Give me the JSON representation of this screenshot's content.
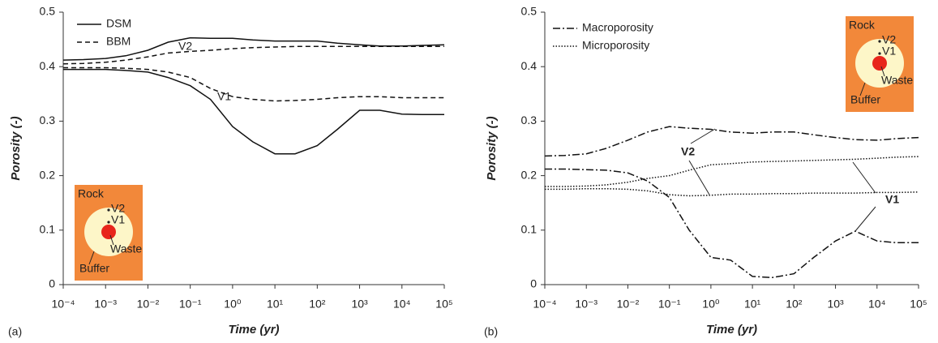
{
  "chart_data": [
    {
      "type": "line",
      "panel_label": "(a)",
      "xscale": "log",
      "x_label": "Time (yr)",
      "y_label": "Porosity (-)",
      "xlim": [
        0.0001,
        100000
      ],
      "xticks": [
        {
          "value": 0.0001,
          "label": "10⁻⁴"
        },
        {
          "value": 0.001,
          "label": "10⁻³"
        },
        {
          "value": 0.01,
          "label": "10⁻²"
        },
        {
          "value": 0.1,
          "label": "10⁻¹"
        },
        {
          "value": 1,
          "label": "10⁰"
        },
        {
          "value": 10,
          "label": "10¹"
        },
        {
          "value": 100,
          "label": "10²"
        },
        {
          "value": 1000,
          "label": "10³"
        },
        {
          "value": 10000,
          "label": "10⁴"
        },
        {
          "value": 100000,
          "label": "10⁵"
        }
      ],
      "ylim": [
        0,
        0.5
      ],
      "yticks": [
        0,
        0.1,
        0.2,
        0.3,
        0.4,
        0.5
      ],
      "legend_corner": "upper left",
      "x": [
        0.0001,
        0.0003,
        0.001,
        0.003,
        0.01,
        0.03,
        0.1,
        0.3,
        1,
        3,
        10,
        30,
        100,
        300,
        1000,
        3000,
        10000,
        30000,
        100000
      ],
      "series": [
        {
          "name": "DSM",
          "color": "#111111",
          "dash": "solid",
          "values": [
            0.412,
            0.413,
            0.415,
            0.42,
            0.43,
            0.445,
            0.453,
            0.452,
            0.452,
            0.449,
            0.447,
            0.447,
            0.447,
            0.443,
            0.44,
            0.438,
            0.438,
            0.439,
            0.44
          ]
        },
        {
          "name": "BBM",
          "color": "#111111",
          "dash": "dashed",
          "values": [
            0.405,
            0.406,
            0.408,
            0.412,
            0.418,
            0.425,
            0.428,
            0.43,
            0.433,
            0.435,
            0.436,
            0.437,
            0.437,
            0.437,
            0.437,
            0.437,
            0.437,
            0.437,
            0.437
          ]
        },
        {
          "name": "DSM",
          "color": "#111111",
          "dash": "solid",
          "values": [
            0.395,
            0.395,
            0.395,
            0.393,
            0.39,
            0.38,
            0.365,
            0.34,
            0.29,
            0.262,
            0.24,
            0.24,
            0.255,
            0.285,
            0.32,
            0.32,
            0.313,
            0.312,
            0.312
          ]
        },
        {
          "name": "BBM",
          "color": "#111111",
          "dash": "dashed",
          "values": [
            0.398,
            0.398,
            0.398,
            0.397,
            0.395,
            0.39,
            0.38,
            0.36,
            0.345,
            0.34,
            0.337,
            0.338,
            0.34,
            0.343,
            0.345,
            0.345,
            0.343,
            0.343,
            0.343
          ]
        }
      ],
      "legend_series": [
        0,
        1
      ],
      "annotations": [
        "V2",
        "V1"
      ],
      "inset": {
        "labels": [
          "Rock",
          "V2",
          "V1",
          "Waste",
          "Buffer"
        ]
      }
    },
    {
      "type": "line",
      "panel_label": "(b)",
      "xscale": "log",
      "x_label": "Time (yr)",
      "y_label": "Porosity (-)",
      "xlim": [
        0.0001,
        100000
      ],
      "xticks": [
        {
          "value": 0.0001,
          "label": "10⁻⁴"
        },
        {
          "value": 0.001,
          "label": "10⁻³"
        },
        {
          "value": 0.01,
          "label": "10⁻²"
        },
        {
          "value": 0.1,
          "label": "10⁻¹"
        },
        {
          "value": 1,
          "label": "10⁰"
        },
        {
          "value": 10,
          "label": "10¹"
        },
        {
          "value": 100,
          "label": "10²"
        },
        {
          "value": 1000,
          "label": "10³"
        },
        {
          "value": 10000,
          "label": "10⁴"
        },
        {
          "value": 100000,
          "label": "10⁵"
        }
      ],
      "ylim": [
        0,
        0.5
      ],
      "yticks": [
        0,
        0.1,
        0.2,
        0.3,
        0.4,
        0.5
      ],
      "legend_corner": "upper left",
      "x": [
        0.0001,
        0.0003,
        0.001,
        0.003,
        0.01,
        0.03,
        0.1,
        0.3,
        1,
        3,
        10,
        30,
        100,
        300,
        1000,
        3000,
        10000,
        30000,
        100000
      ],
      "series": [
        {
          "name": "Macroporosity",
          "color": "#111111",
          "dash": "dashdot",
          "values": [
            0.236,
            0.237,
            0.24,
            0.25,
            0.265,
            0.28,
            0.29,
            0.287,
            0.285,
            0.28,
            0.278,
            0.28,
            0.28,
            0.275,
            0.27,
            0.266,
            0.265,
            0.268,
            0.27
          ]
        },
        {
          "name": "Microporosity",
          "color": "#111111",
          "dash": "dotted",
          "values": [
            0.18,
            0.18,
            0.181,
            0.183,
            0.188,
            0.195,
            0.2,
            0.21,
            0.22,
            0.222,
            0.225,
            0.226,
            0.227,
            0.228,
            0.229,
            0.23,
            0.232,
            0.234,
            0.235
          ]
        },
        {
          "name": "Macroporosity",
          "color": "#111111",
          "dash": "dashdot",
          "values": [
            0.212,
            0.212,
            0.211,
            0.21,
            0.205,
            0.19,
            0.16,
            0.1,
            0.05,
            0.045,
            0.015,
            0.013,
            0.02,
            0.05,
            0.08,
            0.098,
            0.08,
            0.077,
            0.077
          ]
        },
        {
          "name": "Microporosity",
          "color": "#111111",
          "dash": "dotted",
          "values": [
            0.175,
            0.175,
            0.176,
            0.176,
            0.175,
            0.172,
            0.165,
            0.163,
            0.164,
            0.166,
            0.166,
            0.167,
            0.167,
            0.168,
            0.168,
            0.168,
            0.169,
            0.169,
            0.17
          ]
        }
      ],
      "legend_series": [
        0,
        1
      ],
      "annotations": [
        "V2",
        "V1"
      ],
      "inset": {
        "labels": [
          "Rock",
          "V2",
          "V1",
          "Waste",
          "Buffer"
        ]
      }
    }
  ]
}
